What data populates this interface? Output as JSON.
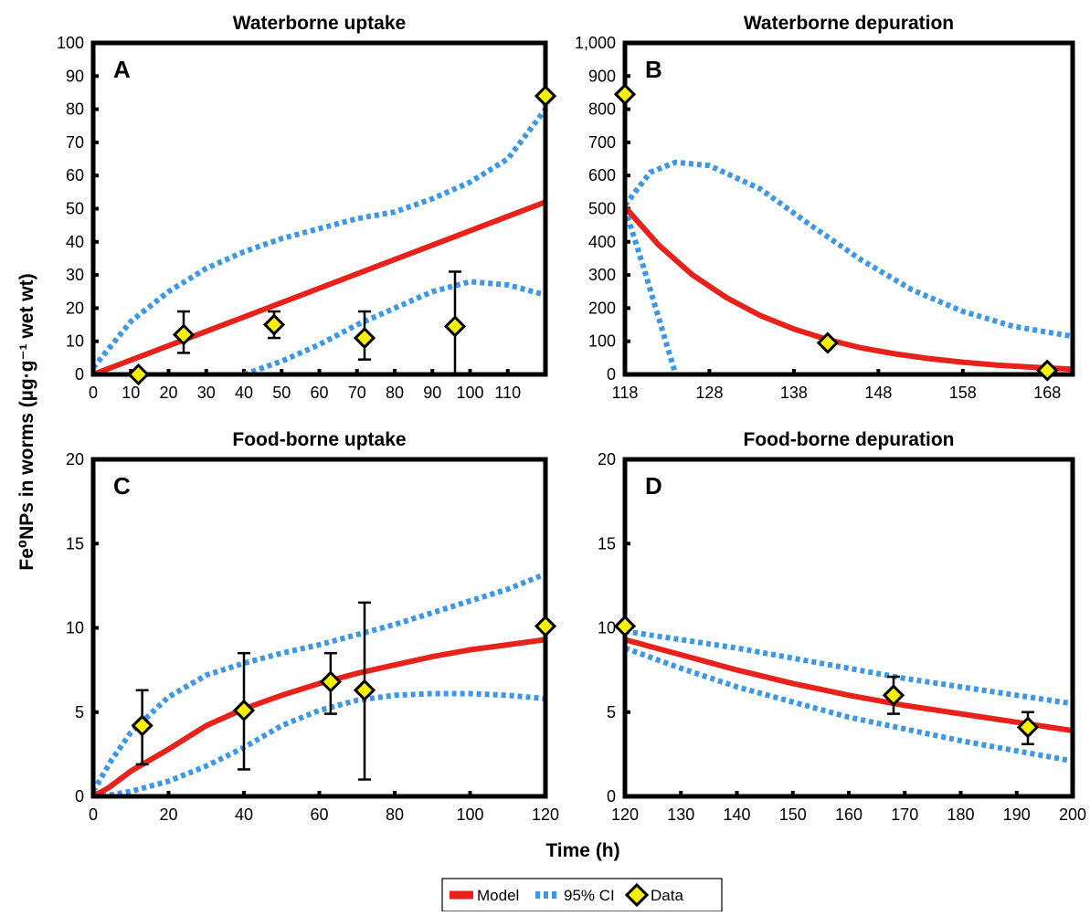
{
  "figure": {
    "ylabel": "Fe⁰NPs in worms (µg·g⁻¹ wet wt)",
    "xlabel": "Time (h)",
    "legend": {
      "position": "bottom-center",
      "items": [
        {
          "label": "Model",
          "style": "solid",
          "color": "#e8211b"
        },
        {
          "label": "95% CI",
          "style": "dotted",
          "color": "#3c98e6"
        },
        {
          "label": "Data",
          "style": "marker",
          "color": "#f7f100"
        }
      ]
    }
  },
  "colors": {
    "model": "#e8211b",
    "ci": "#3c98e6",
    "marker_fill": "#f7f100",
    "axes": "#000000"
  },
  "chart_data": [
    {
      "type": "line",
      "panel": "A",
      "title": "Waterborne uptake",
      "xlabel": "",
      "ylabel": "",
      "xlim": [
        0,
        120
      ],
      "ylim": [
        0,
        100
      ],
      "xticks": [
        0,
        10,
        20,
        30,
        40,
        50,
        60,
        70,
        80,
        90,
        100,
        110
      ],
      "xtick_labels": [
        "0",
        "10",
        "20",
        "30",
        "40",
        "50",
        "60",
        "70",
        "80",
        "90",
        "100",
        "110"
      ],
      "yticks": [
        0,
        10,
        20,
        30,
        40,
        50,
        60,
        70,
        80,
        90,
        100
      ],
      "ytick_labels": [
        "0",
        "10",
        "20",
        "30",
        "40",
        "50",
        "60",
        "70",
        "80",
        "90",
        "100"
      ],
      "model": {
        "x": [
          0,
          120
        ],
        "y": [
          0,
          52
        ]
      },
      "ci_upper": {
        "x": [
          0,
          10,
          20,
          30,
          40,
          50,
          60,
          70,
          80,
          90,
          100,
          110,
          120
        ],
        "y": [
          2,
          16,
          25,
          32,
          37,
          41,
          44,
          47,
          49,
          53,
          58,
          65,
          80
        ]
      },
      "ci_lower": {
        "x": [
          40,
          50,
          60,
          70,
          80,
          90,
          100,
          110,
          120
        ],
        "y": [
          0,
          4,
          9,
          15,
          20,
          25,
          28,
          27,
          24
        ]
      },
      "points": [
        {
          "x": 12,
          "y": 0,
          "err_low": null,
          "err_high": null
        },
        {
          "x": 24,
          "y": 12,
          "err_low": 6.5,
          "err_high": 19
        },
        {
          "x": 48,
          "y": 15,
          "err_low": 11,
          "err_high": 19
        },
        {
          "x": 72,
          "y": 11,
          "err_low": 4.5,
          "err_high": 19
        },
        {
          "x": 96,
          "y": 14.5,
          "err_low": 0,
          "err_high": 31
        },
        {
          "x": 120,
          "y": 84,
          "err_low": null,
          "err_high": null
        }
      ],
      "grid": false
    },
    {
      "type": "line",
      "panel": "B",
      "title": "Waterborne depuration",
      "xlabel": "",
      "ylabel": "",
      "xlim": [
        118,
        171
      ],
      "ylim": [
        0,
        1000
      ],
      "xticks": [
        118,
        128,
        138,
        148,
        158,
        168
      ],
      "xtick_labels": [
        "118",
        "128",
        "138",
        "148",
        "158",
        "168"
      ],
      "yticks": [
        0,
        100,
        200,
        300,
        400,
        500,
        600,
        700,
        800,
        900,
        1000
      ],
      "ytick_labels": [
        "0",
        "100",
        "200",
        "300",
        "400",
        "500",
        "600",
        "700",
        "800",
        "900",
        "1,000"
      ],
      "model": {
        "x": [
          118,
          122,
          126,
          130,
          134,
          138,
          142,
          146,
          150,
          154,
          158,
          162,
          166,
          171
        ],
        "y": [
          505,
          390,
          300,
          232,
          178,
          137,
          105,
          80,
          62,
          48,
          37,
          28,
          22,
          16
        ]
      },
      "ci_upper": {
        "x": [
          118,
          121,
          124,
          128,
          134,
          140,
          146,
          152,
          158,
          164,
          171
        ],
        "y": [
          510,
          610,
          640,
          630,
          560,
          450,
          345,
          255,
          190,
          145,
          115
        ]
      },
      "ci_lower": {
        "x": [
          118,
          120,
          122,
          124
        ],
        "y": [
          500,
          340,
          170,
          0
        ]
      },
      "points": [
        {
          "x": 118,
          "y": 845,
          "err_low": null,
          "err_high": null
        },
        {
          "x": 142,
          "y": 95,
          "err_low": null,
          "err_high": null
        },
        {
          "x": 168,
          "y": 12,
          "err_low": null,
          "err_high": null
        }
      ],
      "grid": false
    },
    {
      "type": "line",
      "panel": "C",
      "title": "Food-borne uptake",
      "xlabel": "",
      "ylabel": "",
      "xlim": [
        0,
        120
      ],
      "ylim": [
        0,
        20
      ],
      "xticks": [
        0,
        20,
        40,
        60,
        80,
        100,
        120
      ],
      "xtick_labels": [
        "0",
        "20",
        "40",
        "60",
        "80",
        "100",
        "120"
      ],
      "yticks": [
        0,
        5,
        10,
        15,
        20
      ],
      "ytick_labels": [
        "0",
        "5",
        "10",
        "15",
        "20"
      ],
      "model": {
        "x": [
          0,
          4,
          10,
          20,
          30,
          40,
          50,
          60,
          70,
          80,
          90,
          100,
          110,
          120
        ],
        "y": [
          0,
          0.5,
          1.5,
          2.8,
          4.2,
          5.2,
          6.0,
          6.7,
          7.3,
          7.8,
          8.3,
          8.7,
          9.0,
          9.3
        ]
      },
      "ci_upper": {
        "x": [
          0,
          5,
          10,
          20,
          30,
          40,
          50,
          60,
          70,
          80,
          90,
          100,
          110,
          120
        ],
        "y": [
          0.3,
          2.2,
          3.8,
          5.9,
          7.2,
          7.9,
          8.5,
          9.0,
          9.6,
          10.2,
          10.9,
          11.6,
          12.3,
          13.2
        ]
      },
      "ci_lower": {
        "x": [
          0,
          5,
          10,
          20,
          30,
          40,
          50,
          60,
          70,
          80,
          90,
          100,
          110,
          120
        ],
        "y": [
          0,
          0.1,
          0.3,
          0.9,
          1.8,
          2.9,
          4.2,
          5.1,
          5.7,
          6.0,
          6.1,
          6.1,
          6.0,
          5.8
        ]
      },
      "points": [
        {
          "x": 13,
          "y": 4.2,
          "err_low": 1.9,
          "err_high": 6.3
        },
        {
          "x": 40,
          "y": 5.1,
          "err_low": 1.6,
          "err_high": 8.5
        },
        {
          "x": 63,
          "y": 6.8,
          "err_low": 4.9,
          "err_high": 8.5
        },
        {
          "x": 72,
          "y": 6.3,
          "err_low": 1.0,
          "err_high": 11.5
        },
        {
          "x": 120,
          "y": 10.1,
          "err_low": null,
          "err_high": null
        }
      ],
      "grid": false
    },
    {
      "type": "line",
      "panel": "D",
      "title": "Food-borne depuration",
      "xlabel": "",
      "ylabel": "",
      "xlim": [
        120,
        200
      ],
      "ylim": [
        0,
        20
      ],
      "xticks": [
        120,
        130,
        140,
        150,
        160,
        170,
        180,
        190,
        200
      ],
      "xtick_labels": [
        "120",
        "130",
        "140",
        "150",
        "160",
        "170",
        "180",
        "190",
        "200"
      ],
      "yticks": [
        0,
        5,
        10,
        15,
        20
      ],
      "ytick_labels": [
        "0",
        "5",
        "10",
        "15",
        "20"
      ],
      "model": {
        "x": [
          120,
          130,
          140,
          150,
          160,
          170,
          180,
          190,
          200
        ],
        "y": [
          9.3,
          8.4,
          7.5,
          6.7,
          6.0,
          5.4,
          4.9,
          4.4,
          3.9
        ]
      },
      "ci_upper": {
        "x": [
          120,
          130,
          140,
          150,
          160,
          170,
          180,
          190,
          200
        ],
        "y": [
          9.8,
          9.3,
          8.8,
          8.2,
          7.6,
          7.0,
          6.5,
          6.0,
          5.5
        ]
      },
      "ci_lower": {
        "x": [
          120,
          130,
          140,
          150,
          160,
          170,
          180,
          190,
          200
        ],
        "y": [
          8.8,
          7.6,
          6.5,
          5.6,
          4.7,
          4.0,
          3.3,
          2.7,
          2.1
        ]
      },
      "points": [
        {
          "x": 120,
          "y": 10.1,
          "err_low": null,
          "err_high": null
        },
        {
          "x": 168,
          "y": 6.0,
          "err_low": 4.9,
          "err_high": 7.1
        },
        {
          "x": 192,
          "y": 4.1,
          "err_low": 3.1,
          "err_high": 5.0
        }
      ],
      "grid": false
    }
  ]
}
